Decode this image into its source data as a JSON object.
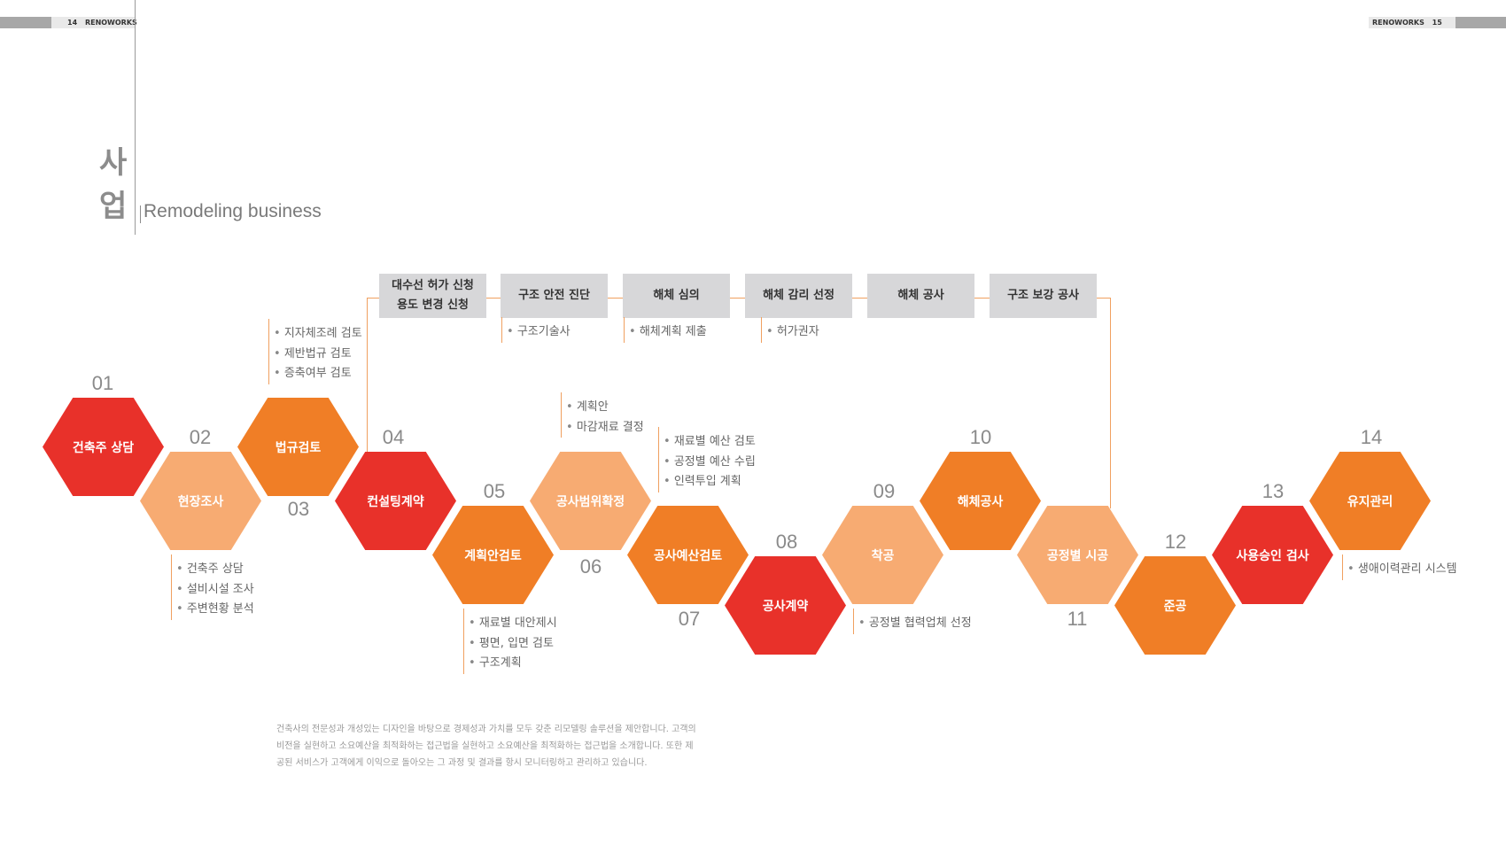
{
  "header": {
    "left_page": "14",
    "left_brand": "RENOWORKS",
    "right_brand": "RENOWORKS",
    "right_page": "15"
  },
  "title": {
    "kr_1": "사",
    "kr_2": "업",
    "en": "Remodeling business"
  },
  "colors": {
    "red": "#e8312a",
    "orange": "#f07e26",
    "peach": "#f7ab72",
    "box": "#d7d7d9",
    "line": "#f0a060"
  },
  "top_boxes": [
    {
      "line1": "대수선 허가 신청",
      "line2": "용도 변경 신청"
    },
    {
      "line1": "구조 안전 진단"
    },
    {
      "line1": "해체 심의"
    },
    {
      "line1": "해체 감리 선정"
    },
    {
      "line1": "해체 공사"
    },
    {
      "line1": "구조 보강 공사"
    }
  ],
  "top_notes": [
    [
      "구조기술사"
    ],
    [
      "해체계획 제출"
    ],
    [
      "허가권자"
    ]
  ],
  "steps": [
    {
      "num": "01",
      "label": "건축주 상담",
      "color": "red"
    },
    {
      "num": "02",
      "label": "현장조사",
      "color": "peach"
    },
    {
      "num": "03",
      "label": "법규검토",
      "color": "orange"
    },
    {
      "num": "04",
      "label": "컨설팅계약",
      "color": "red"
    },
    {
      "num": "05",
      "label": "계획안검토",
      "color": "orange"
    },
    {
      "num": "06",
      "label": "공사범위확정",
      "color": "peach"
    },
    {
      "num": "07",
      "label": "공사예산검토",
      "color": "orange"
    },
    {
      "num": "08",
      "label": "공사계약",
      "color": "red"
    },
    {
      "num": "09",
      "label": "착공",
      "color": "peach"
    },
    {
      "num": "10",
      "label": "해체공사",
      "color": "orange"
    },
    {
      "num": "11",
      "label": "공정별 시공",
      "color": "peach"
    },
    {
      "num": "12",
      "label": "준공",
      "color": "orange"
    },
    {
      "num": "13",
      "label": "사용승인 검사",
      "color": "red"
    },
    {
      "num": "14",
      "label": "유지관리",
      "color": "orange"
    }
  ],
  "notes": {
    "s02": [
      "건축주 상담",
      "설비시설 조사",
      "주변현황 분석"
    ],
    "s03": [
      "지자체조례 검토",
      "제반법규 검토",
      "증축여부 검토"
    ],
    "s05": [
      "재료별 대안제시",
      "평면, 입면 검토",
      "구조계획"
    ],
    "s06": [
      "계획안",
      "마감재료 결정"
    ],
    "s07": [
      "재료별 예산 검토",
      "공정별 예산 수립",
      "인력투입 계획"
    ],
    "s09": [
      "공정별 협력업체 선정"
    ],
    "s14": [
      "생애이력관리 시스템"
    ]
  },
  "description": "건축사의 전문성과 개성있는 디자인을 바탕으로 경제성과 가치를 모두 갖춘 리모델링 솔루션을 제안합니다. 고객의 비전을 실현하고 소요예산을 최적화하는 접근법을 실현하고 소요예산을 최적화하는 접근법을 소개합니다. 또한 제공된 서비스가 고객에게 이익으로 돌아오는 그 과정 및 결과를 항시 모니터링하고 관리하고 있습니다."
}
